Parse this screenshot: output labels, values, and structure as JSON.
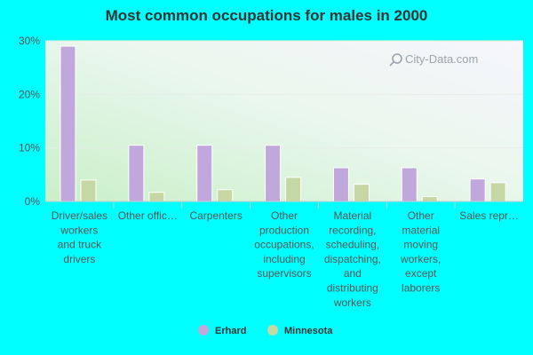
{
  "chart_data": {
    "type": "bar",
    "title": "Most common occupations for males in 2000",
    "categories": [
      "Driver/sales workers and truck drivers",
      "Other office...",
      "Carpenters",
      "Other production occupations, including supervisors",
      "Material recording, scheduling, dispatching, and distributing workers",
      "Other material moving workers, except laborers",
      "Sales repr..."
    ],
    "category_lines": [
      [
        "Driver/sales",
        "workers",
        "and truck",
        "drivers"
      ],
      [
        "Other offic…"
      ],
      [
        "Carpenters"
      ],
      [
        "Other",
        "production",
        "occupations,",
        "including",
        "supervisors"
      ],
      [
        "Material",
        "recording,",
        "scheduling,",
        "dispatching,",
        "and",
        "distributing",
        "workers"
      ],
      [
        "Other",
        "material",
        "moving",
        "workers,",
        "except",
        "laborers"
      ],
      [
        "Sales repr…"
      ]
    ],
    "series": [
      {
        "name": "Erhard",
        "color": "#c0a8dc",
        "values": [
          29.0,
          10.5,
          10.5,
          10.5,
          6.3,
          6.3,
          4.2
        ]
      },
      {
        "name": "Minnesota",
        "color": "#c5d8a4",
        "values": [
          4.0,
          1.7,
          2.2,
          4.5,
          3.2,
          0.9,
          3.5
        ]
      }
    ],
    "ylim": [
      0,
      30
    ],
    "yticks": [
      0,
      10,
      20,
      30
    ],
    "ytick_labels": [
      "0%",
      "10%",
      "20%",
      "30%"
    ],
    "grid": true,
    "legend_position": "bottom-center"
  },
  "watermark": "City-Data.com"
}
